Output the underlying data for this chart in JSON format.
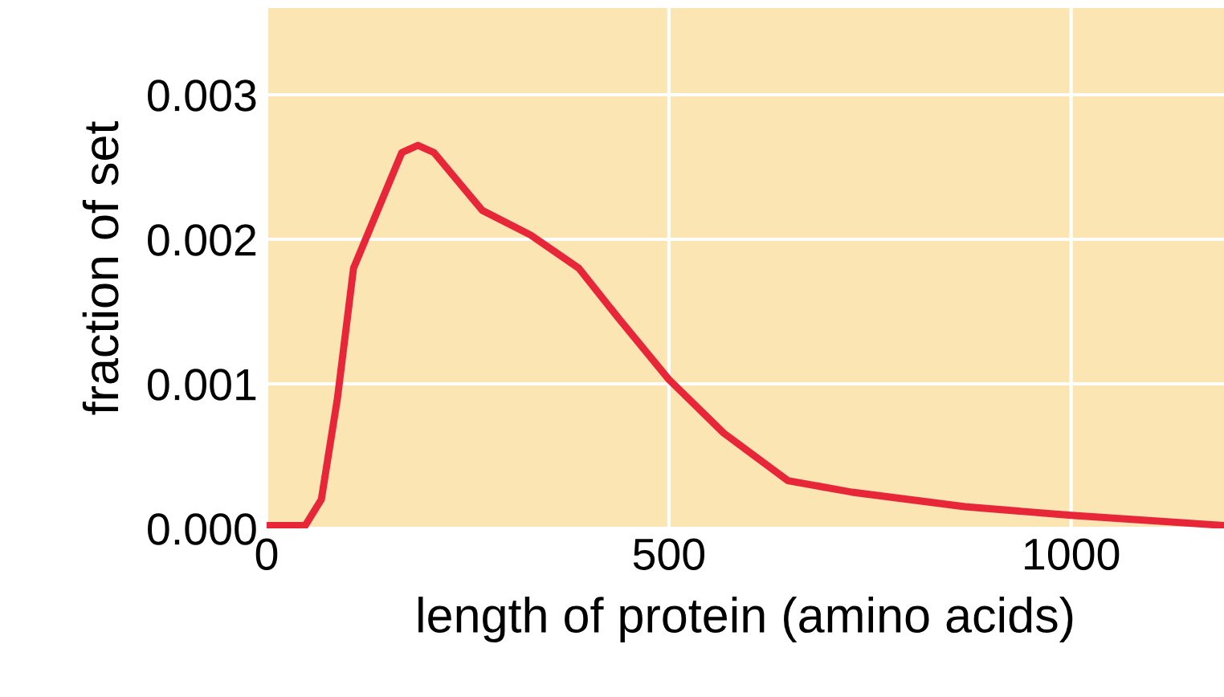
{
  "chart_data": {
    "type": "line",
    "xlabel": "length of protein (amino acids)",
    "ylabel": "fraction of set",
    "x": [
      0,
      48,
      68,
      88,
      108,
      138,
      168,
      188,
      208,
      238,
      268,
      328,
      388,
      438,
      500,
      568,
      648,
      728,
      868,
      1000,
      1190
    ],
    "series": [
      {
        "color": "#e8263a",
        "values": [
          2e-05,
          2e-05,
          0.0002,
          0.0009,
          0.0018,
          0.0022,
          0.0026,
          0.00265,
          0.0026,
          0.0024,
          0.0022,
          0.00203,
          0.0018,
          0.00145,
          0.00103,
          0.00066,
          0.00033,
          0.00025,
          0.00015,
          9e-05,
          2e-05
        ]
      }
    ],
    "xlim": [
      0,
      1190
    ],
    "ylim": [
      0,
      0.0036
    ],
    "xticks": [
      0,
      500,
      1000
    ],
    "yticks": [
      {
        "value": 0,
        "label": "0.000"
      },
      0.001,
      0.002,
      0.003
    ],
    "grid": true,
    "marker": "none",
    "line_style": "solid",
    "legend": false
  }
}
